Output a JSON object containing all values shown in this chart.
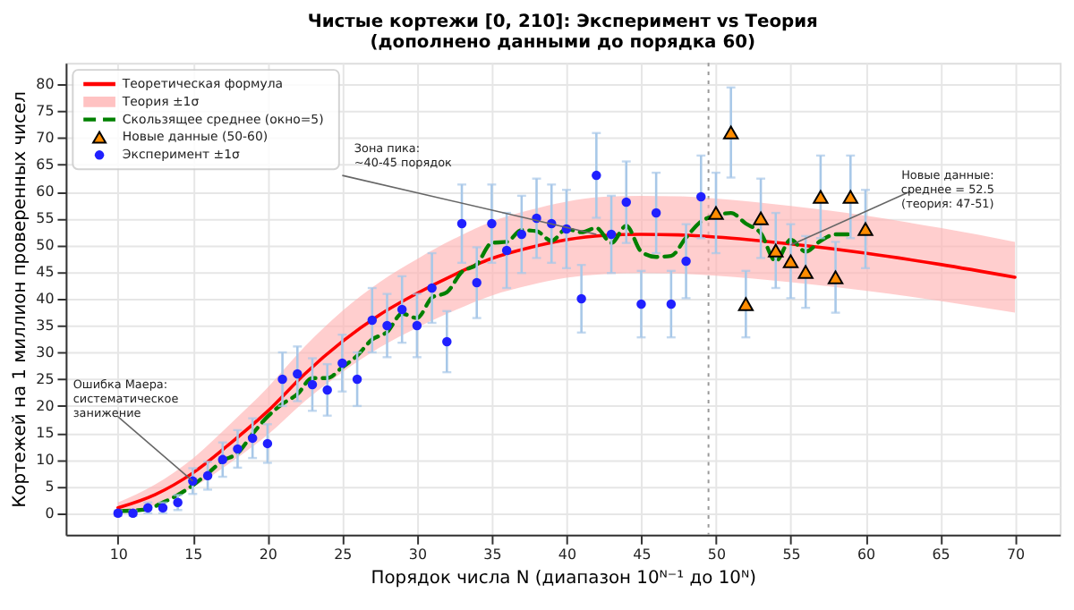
{
  "chart_data": {
    "type": "line",
    "title": "Чистые кортежи [0, 210]: Эксперимент vs Теория\n(дополнено данными до порядка 60)",
    "xlabel": "Порядок числа N (диапазон 10ᴺ⁻¹ до 10ᴺ)",
    "ylabel": "Кортежей на 1 миллион проверенных чисел",
    "xlim": [
      6.5,
      73
    ],
    "xticks": [
      10,
      15,
      20,
      25,
      30,
      35,
      40,
      45,
      50,
      55,
      60,
      65,
      70
    ],
    "ylim": [
      -4,
      84
    ],
    "yticks": [
      0,
      5,
      10,
      15,
      20,
      25,
      30,
      35,
      40,
      45,
      50,
      55,
      60,
      65,
      70,
      75,
      80
    ],
    "grid": true,
    "legend": "top left",
    "series": [
      {
        "name": "Теоретическая формула",
        "color": "#ff0000",
        "line_style": "solid",
        "x": [
          10,
          12.5,
          15,
          17.5,
          20,
          22.5,
          25,
          27.5,
          30,
          32.5,
          35,
          37.5,
          40,
          42.5,
          45,
          47.5,
          50,
          55,
          60,
          65,
          70
        ],
        "values": [
          1,
          3.5,
          7.5,
          13,
          19,
          26,
          32,
          37,
          41,
          44.5,
          47.5,
          49.5,
          51,
          51.8,
          52,
          51.9,
          51.5,
          50.2,
          48.5,
          46.4,
          44
        ],
        "lower": [
          0,
          1.6,
          4.8,
          9.4,
          14.6,
          20.9,
          26.3,
          30.9,
          34.6,
          37.8,
          40.6,
          42.5,
          43.9,
          44.6,
          44.8,
          44.7,
          44.3,
          43.1,
          41.5,
          39.6,
          37.4
        ],
        "upper": [
          2,
          5.4,
          10.2,
          16.6,
          23.4,
          31.1,
          37.7,
          43.1,
          47.4,
          51.2,
          54.4,
          56.5,
          58.1,
          59,
          59.2,
          59.1,
          58.7,
          57.3,
          55.5,
          53.2,
          50.6
        ]
      },
      {
        "name": "Теория ±1σ",
        "type": "area",
        "color": "#ffb3b3"
      },
      {
        "name": "Скользящее среднее (окно=5)",
        "color": "#008000",
        "line_style": "dashed",
        "x": [
          10,
          11,
          12,
          13,
          14,
          15,
          16,
          17,
          18,
          19,
          20,
          21,
          22,
          23,
          24,
          25,
          26,
          27,
          28,
          29,
          30,
          31,
          32,
          33,
          34,
          35,
          36,
          37,
          38,
          39,
          40,
          41,
          42,
          43,
          44,
          45,
          46,
          47,
          48,
          49,
          50,
          51,
          52,
          53,
          54,
          55,
          56,
          57,
          58,
          59
        ],
        "values": [
          0.4,
          0.5,
          0.8,
          2,
          3.4,
          5.2,
          7.4,
          9.8,
          11.2,
          14.8,
          18,
          20.4,
          22.2,
          25.2,
          25.2,
          27.2,
          29.4,
          32.4,
          33.8,
          37.2,
          36.4,
          40.2,
          41.2,
          45,
          46.4,
          50.4,
          50.6,
          52.8,
          52.6,
          50.8,
          53,
          52.4,
          53.2,
          50.4,
          53.6,
          48.8,
          47.8,
          48,
          51.4,
          54.4,
          55.5,
          56,
          54,
          52.2,
          47,
          51,
          48.8,
          50.8,
          52,
          52
        ]
      },
      {
        "name": "Новые данные (50-60)",
        "type": "scatter",
        "marker": "triangle",
        "color": "#ff8c00",
        "x": [
          50,
          51,
          52,
          53,
          54,
          55,
          56,
          57,
          58,
          59,
          60
        ],
        "values": [
          56,
          71,
          39,
          55,
          49,
          47,
          45,
          59,
          44,
          59,
          53
        ],
        "errors": [
          7.5,
          8.4,
          6.2,
          7.4,
          7,
          6.9,
          6.7,
          7.7,
          6.6,
          7.7,
          7.3
        ]
      },
      {
        "name": "Эксперимент ±1σ",
        "type": "scatter",
        "marker": "circle",
        "color": "#2020ff",
        "x": [
          10,
          11,
          12,
          13,
          14,
          15,
          16,
          17,
          18,
          19,
          20,
          21,
          22,
          23,
          24,
          25,
          26,
          27,
          28,
          29,
          30,
          31,
          32,
          33,
          34,
          35,
          36,
          37,
          38,
          39,
          40,
          41,
          42,
          43,
          44,
          45,
          46,
          47,
          48,
          49
        ],
        "values": [
          0,
          0,
          1,
          1,
          2,
          6,
          7,
          10,
          12,
          14,
          13,
          25,
          26,
          24,
          23,
          28,
          25,
          36,
          35,
          38,
          35,
          42,
          32,
          54,
          43,
          54,
          49,
          52,
          55,
          54,
          53,
          40,
          63,
          52,
          58,
          39,
          56,
          39,
          47,
          59
        ],
        "errors": [
          0.5,
          0.5,
          1,
          1,
          1.4,
          2.4,
          2.6,
          3.2,
          3.5,
          3.7,
          3.6,
          5,
          5.1,
          4.9,
          4.8,
          5.3,
          5,
          6,
          5.9,
          6.2,
          5.9,
          6.5,
          5.7,
          7.3,
          6.6,
          7.3,
          7,
          7.2,
          7.4,
          7.3,
          7.3,
          6.3,
          7.9,
          7.2,
          7.6,
          6.2,
          7.5,
          6.2,
          6.9,
          7.7
        ]
      }
    ],
    "ref_lines": [
      {
        "axis": "x",
        "value": 49.5,
        "color": "#999999",
        "line_style": "dotted"
      }
    ],
    "annotations": [
      {
        "text": "Зона пика:\n~40-45 порядок",
        "x": 42,
        "y": 52
      },
      {
        "text": "Новые данные:\nсреднее = 52.5\n(теория: 47-51)",
        "x": 55,
        "y": 50
      },
      {
        "text": "Ошибка Маера:\nсистематическое\nзанижение",
        "x": 15,
        "y": 6
      }
    ]
  }
}
